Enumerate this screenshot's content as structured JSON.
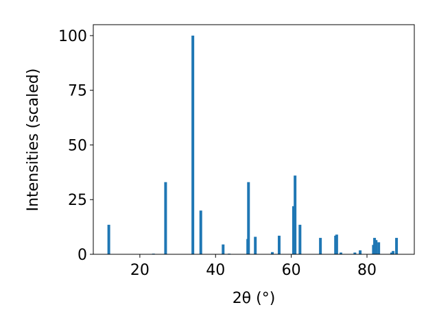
{
  "chart_data": {
    "type": "bar",
    "x_label": "2θ (°)",
    "y_label": "Intensities (scaled)",
    "x": [
      11.8,
      23.6,
      26.8,
      34.0,
      36.1,
      42.0,
      43.6,
      48.5,
      48.7,
      50.5,
      55.0,
      56.8,
      60.6,
      61.0,
      62.3,
      67.7,
      71.7,
      72.0,
      73.1,
      76.8,
      78.2,
      81.7,
      82.0,
      82.4,
      83.1,
      86.5,
      86.9,
      87.8
    ],
    "values": [
      13.5,
      0.3,
      33,
      100,
      20,
      4.5,
      0.3,
      7,
      33,
      8,
      1,
      8.5,
      22,
      36,
      13.5,
      7.5,
      8.5,
      9,
      0.8,
      0.8,
      1.8,
      4.3,
      7.5,
      6.5,
      5.5,
      0.8,
      1.5,
      7.5
    ],
    "color": "#1f77b4",
    "xlim": [
      7.7,
      92.5
    ],
    "ylim": [
      0,
      105
    ],
    "xticks": [
      20,
      40,
      60,
      80
    ],
    "yticks": [
      0,
      25,
      50,
      75,
      100
    ]
  }
}
